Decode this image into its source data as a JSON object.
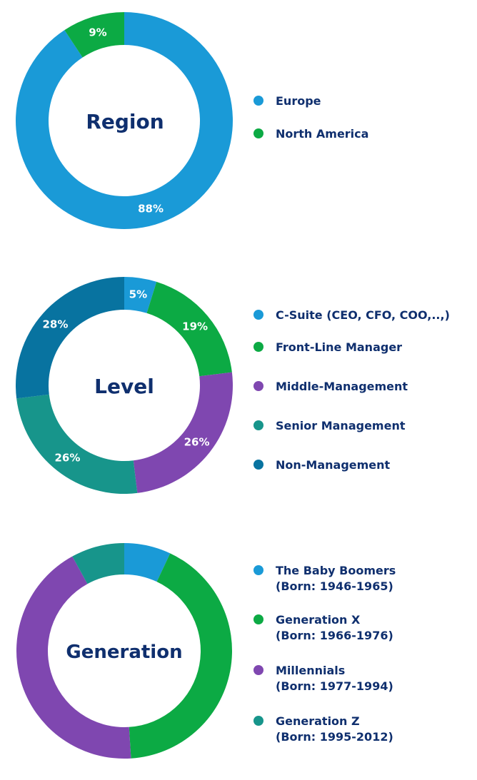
{
  "chart_data": [
    {
      "type": "pie",
      "title": "Region",
      "categories": [
        "Europe",
        "North America"
      ],
      "values": [
        88,
        9
      ],
      "slice_labels": [
        "88%",
        "9%"
      ],
      "colors": [
        "#1a9ad7",
        "#0caa44"
      ],
      "legend_position": "right"
    },
    {
      "type": "pie",
      "title": "Level",
      "categories": [
        "C-Suite (CEO, CFO, COO,..,)",
        "Front-Line Manager",
        "Middle-Management",
        "Senior Management",
        "Non-Management"
      ],
      "values": [
        5,
        19,
        26,
        26,
        28
      ],
      "slice_labels": [
        "5%",
        "19%",
        "26%",
        "26%",
        "28%"
      ],
      "colors": [
        "#1a9ad7",
        "#0caa44",
        "#7f47b0",
        "#17958b",
        "#0873a0"
      ],
      "legend_position": "right"
    },
    {
      "type": "pie",
      "title": "Generation",
      "categories": [
        "The Baby Boomers",
        "Generation X",
        "Millennials",
        "Generation Z"
      ],
      "category_notes": [
        "(Born: 1946-1965)",
        "(Born: 1966-1976)",
        "(Born: 1977-1994)",
        "(Born: 1995-2012)"
      ],
      "values": [
        7,
        42,
        43,
        8
      ],
      "colors": [
        "#1a9ad7",
        "#0caa44",
        "#7f47b0",
        "#17958b"
      ],
      "legend_position": "right"
    }
  ]
}
